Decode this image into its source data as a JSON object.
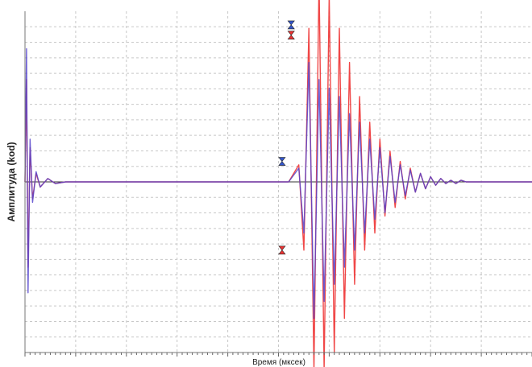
{
  "chart_data": {
    "type": "line",
    "title": "",
    "xlabel": "Время (мксек)",
    "ylabel": "Амплитуда (kod)",
    "grid": true,
    "grid_style": "dashed",
    "legend": "none",
    "xlim": [
      0,
      1
    ],
    "ylim": [
      -1,
      1
    ],
    "series": [
      {
        "color": "#ee3333",
        "x": [
          0.0,
          0.003,
          0.006,
          0.01,
          0.015,
          0.022,
          0.03,
          0.045,
          0.06,
          0.08,
          0.1,
          0.2,
          0.3,
          0.4,
          0.5,
          0.52,
          0.54,
          0.55,
          0.56,
          0.57,
          0.58,
          0.59,
          0.6,
          0.61,
          0.62,
          0.63,
          0.64,
          0.65,
          0.66,
          0.67,
          0.68,
          0.69,
          0.7,
          0.71,
          0.72,
          0.73,
          0.74,
          0.75,
          0.76,
          0.77,
          0.78,
          0.79,
          0.8,
          0.81,
          0.82,
          0.83,
          0.84,
          0.85,
          0.86,
          0.87,
          0.88,
          0.89,
          0.9,
          0.91,
          0.92,
          1.0
        ],
        "y": [
          0.0,
          0.6,
          -0.5,
          0.2,
          -0.1,
          0.05,
          -0.03,
          0.02,
          -0.01,
          0.0,
          0.0,
          0.0,
          0.0,
          0.0,
          0.0,
          0.0,
          0.1,
          -0.4,
          0.9,
          -1.1,
          1.2,
          -1.1,
          1.1,
          -1.0,
          0.9,
          -0.8,
          0.7,
          -0.6,
          0.5,
          -0.4,
          0.35,
          -0.3,
          0.25,
          -0.2,
          0.18,
          -0.15,
          0.12,
          -0.1,
          0.08,
          -0.06,
          0.05,
          -0.04,
          0.03,
          -0.02,
          0.02,
          -0.01,
          0.01,
          -0.01,
          0.01,
          0.0,
          0.0,
          0.0,
          0.0,
          0.0,
          0.0,
          0.0
        ]
      },
      {
        "color": "#5544cc",
        "x": [
          0.0,
          0.003,
          0.006,
          0.01,
          0.015,
          0.022,
          0.03,
          0.045,
          0.06,
          0.08,
          0.1,
          0.2,
          0.3,
          0.4,
          0.5,
          0.52,
          0.54,
          0.55,
          0.56,
          0.57,
          0.58,
          0.59,
          0.6,
          0.61,
          0.62,
          0.63,
          0.64,
          0.65,
          0.66,
          0.67,
          0.68,
          0.69,
          0.7,
          0.71,
          0.72,
          0.73,
          0.74,
          0.75,
          0.76,
          0.77,
          0.78,
          0.79,
          0.8,
          0.81,
          0.82,
          0.83,
          0.84,
          0.85,
          0.86,
          0.87,
          0.88,
          0.89,
          0.9,
          0.91,
          0.92,
          1.0
        ],
        "y": [
          0.0,
          0.78,
          -0.65,
          0.25,
          -0.12,
          0.06,
          -0.03,
          0.02,
          -0.01,
          0.0,
          0.0,
          0.0,
          0.0,
          0.0,
          0.0,
          0.0,
          0.08,
          -0.3,
          0.7,
          -0.8,
          0.6,
          -0.7,
          0.55,
          -0.6,
          0.5,
          -0.5,
          0.4,
          -0.4,
          0.35,
          -0.3,
          0.25,
          -0.22,
          0.2,
          -0.18,
          0.15,
          -0.12,
          0.1,
          -0.08,
          0.07,
          -0.06,
          0.05,
          -0.04,
          0.03,
          -0.02,
          0.02,
          -0.01,
          0.01,
          -0.01,
          0.01,
          0.0,
          0.0,
          0.0,
          0.0,
          0.0,
          0.0,
          0.0
        ]
      }
    ],
    "markers": [
      {
        "x": 0.507,
        "y": 0.12,
        "color": "#3355cc"
      },
      {
        "x": 0.507,
        "y": -0.4,
        "color": "#ee3333"
      },
      {
        "x": 0.525,
        "y": 0.92,
        "color": "#3355cc"
      },
      {
        "x": 0.525,
        "y": 0.86,
        "color": "#ee3333"
      }
    ]
  }
}
